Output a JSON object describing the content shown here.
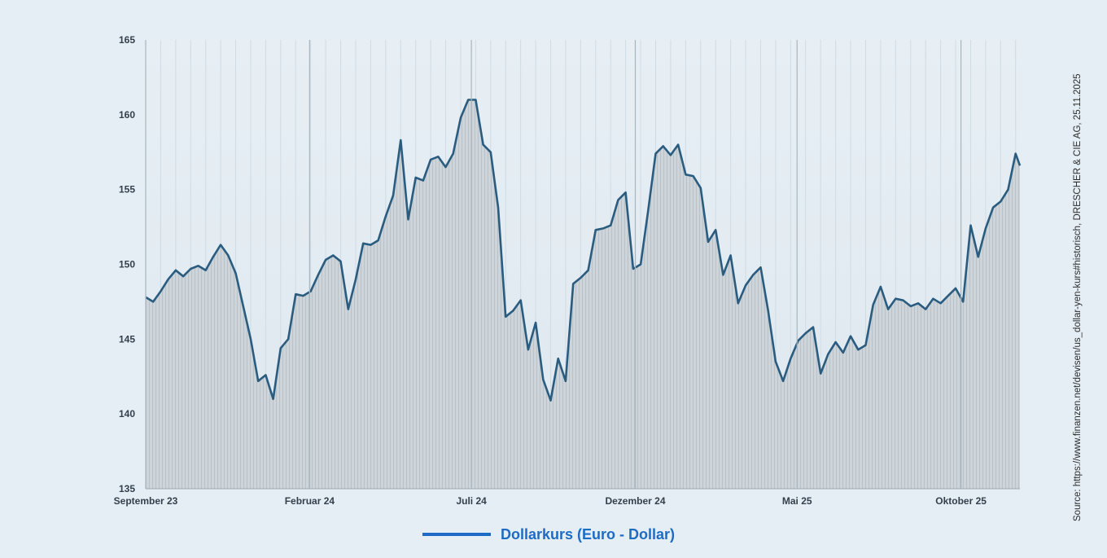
{
  "chart_data": {
    "type": "area",
    "ylim": [
      135,
      165
    ],
    "yticks": [
      "135",
      "140",
      "145",
      "150",
      "155",
      "160",
      "165"
    ],
    "x_range": [
      "2023-09-01",
      "2025-11-25"
    ],
    "xticks": [
      {
        "date": "2023-09-01",
        "label": "September 23"
      },
      {
        "date": "2024-02-01",
        "label": "Februar 24"
      },
      {
        "date": "2024-07-01",
        "label": "Juli 24"
      },
      {
        "date": "2024-12-01",
        "label": "Dezember 24"
      },
      {
        "date": "2025-05-01",
        "label": "Mai 25"
      },
      {
        "date": "2025-10-01",
        "label": "Oktober 25"
      }
    ],
    "grid": "vertical",
    "legend_position": "bottom",
    "series": [
      {
        "name": "Dollarkurs (Euro - Dollar)",
        "points": [
          [
            "2023-09-01",
            147.8
          ],
          [
            "2023-09-08",
            147.5
          ],
          [
            "2023-09-15",
            148.2
          ],
          [
            "2023-09-22",
            149.0
          ],
          [
            "2023-09-29",
            149.6
          ],
          [
            "2023-10-06",
            149.2
          ],
          [
            "2023-10-13",
            149.7
          ],
          [
            "2023-10-20",
            149.9
          ],
          [
            "2023-10-27",
            149.6
          ],
          [
            "2023-11-03",
            150.5
          ],
          [
            "2023-11-10",
            151.3
          ],
          [
            "2023-11-17",
            150.6
          ],
          [
            "2023-11-24",
            149.4
          ],
          [
            "2023-12-01",
            147.2
          ],
          [
            "2023-12-08",
            145.0
          ],
          [
            "2023-12-15",
            142.2
          ],
          [
            "2023-12-22",
            142.6
          ],
          [
            "2023-12-29",
            141.0
          ],
          [
            "2024-01-05",
            144.4
          ],
          [
            "2024-01-12",
            145.0
          ],
          [
            "2024-01-19",
            148.0
          ],
          [
            "2024-01-26",
            147.9
          ],
          [
            "2024-02-02",
            148.2
          ],
          [
            "2024-02-09",
            149.3
          ],
          [
            "2024-02-16",
            150.3
          ],
          [
            "2024-02-23",
            150.6
          ],
          [
            "2024-03-01",
            150.2
          ],
          [
            "2024-03-08",
            147.0
          ],
          [
            "2024-03-15",
            149.0
          ],
          [
            "2024-03-22",
            151.4
          ],
          [
            "2024-03-29",
            151.3
          ],
          [
            "2024-04-05",
            151.6
          ],
          [
            "2024-04-12",
            153.2
          ],
          [
            "2024-04-19",
            154.6
          ],
          [
            "2024-04-26",
            158.3
          ],
          [
            "2024-05-03",
            153.0
          ],
          [
            "2024-05-10",
            155.8
          ],
          [
            "2024-05-17",
            155.6
          ],
          [
            "2024-05-24",
            157.0
          ],
          [
            "2024-05-31",
            157.2
          ],
          [
            "2024-06-07",
            156.5
          ],
          [
            "2024-06-14",
            157.4
          ],
          [
            "2024-06-21",
            159.8
          ],
          [
            "2024-06-28",
            161.0
          ],
          [
            "2024-07-05",
            161.0
          ],
          [
            "2024-07-12",
            158.0
          ],
          [
            "2024-07-19",
            157.5
          ],
          [
            "2024-07-26",
            153.8
          ],
          [
            "2024-08-02",
            146.5
          ],
          [
            "2024-08-09",
            146.9
          ],
          [
            "2024-08-16",
            147.6
          ],
          [
            "2024-08-23",
            144.3
          ],
          [
            "2024-08-30",
            146.1
          ],
          [
            "2024-09-06",
            142.3
          ],
          [
            "2024-09-13",
            140.9
          ],
          [
            "2024-09-20",
            143.7
          ],
          [
            "2024-09-27",
            142.2
          ],
          [
            "2024-10-04",
            148.7
          ],
          [
            "2024-10-11",
            149.1
          ],
          [
            "2024-10-18",
            149.6
          ],
          [
            "2024-10-25",
            152.3
          ],
          [
            "2024-11-01",
            152.4
          ],
          [
            "2024-11-08",
            152.6
          ],
          [
            "2024-11-15",
            154.3
          ],
          [
            "2024-11-22",
            154.8
          ],
          [
            "2024-11-29",
            149.7
          ],
          [
            "2024-12-06",
            150.0
          ],
          [
            "2024-12-13",
            153.6
          ],
          [
            "2024-12-20",
            157.4
          ],
          [
            "2024-12-27",
            157.9
          ],
          [
            "2025-01-03",
            157.3
          ],
          [
            "2025-01-10",
            158.0
          ],
          [
            "2025-01-17",
            156.0
          ],
          [
            "2025-01-24",
            155.9
          ],
          [
            "2025-01-31",
            155.1
          ],
          [
            "2025-02-07",
            151.5
          ],
          [
            "2025-02-14",
            152.3
          ],
          [
            "2025-02-21",
            149.3
          ],
          [
            "2025-02-28",
            150.6
          ],
          [
            "2025-03-07",
            147.4
          ],
          [
            "2025-03-14",
            148.6
          ],
          [
            "2025-03-21",
            149.3
          ],
          [
            "2025-03-28",
            149.8
          ],
          [
            "2025-04-04",
            146.9
          ],
          [
            "2025-04-11",
            143.5
          ],
          [
            "2025-04-18",
            142.2
          ],
          [
            "2025-04-25",
            143.7
          ],
          [
            "2025-05-02",
            144.9
          ],
          [
            "2025-05-09",
            145.4
          ],
          [
            "2025-05-16",
            145.8
          ],
          [
            "2025-05-23",
            142.7
          ],
          [
            "2025-05-30",
            144.0
          ],
          [
            "2025-06-06",
            144.8
          ],
          [
            "2025-06-13",
            144.1
          ],
          [
            "2025-06-20",
            145.2
          ],
          [
            "2025-06-27",
            144.3
          ],
          [
            "2025-07-04",
            144.6
          ],
          [
            "2025-07-11",
            147.3
          ],
          [
            "2025-07-18",
            148.5
          ],
          [
            "2025-07-25",
            147.0
          ],
          [
            "2025-08-01",
            147.7
          ],
          [
            "2025-08-08",
            147.6
          ],
          [
            "2025-08-15",
            147.2
          ],
          [
            "2025-08-22",
            147.4
          ],
          [
            "2025-08-29",
            147.0
          ],
          [
            "2025-09-05",
            147.7
          ],
          [
            "2025-09-12",
            147.4
          ],
          [
            "2025-09-19",
            147.9
          ],
          [
            "2025-09-26",
            148.4
          ],
          [
            "2025-10-03",
            147.5
          ],
          [
            "2025-10-10",
            152.6
          ],
          [
            "2025-10-17",
            150.5
          ],
          [
            "2025-10-24",
            152.4
          ],
          [
            "2025-10-31",
            153.8
          ],
          [
            "2025-11-07",
            154.2
          ],
          [
            "2025-11-14",
            155.0
          ],
          [
            "2025-11-21",
            157.4
          ],
          [
            "2025-11-25",
            156.6
          ]
        ]
      }
    ]
  },
  "legend": {
    "label": "Dollarkurs (Euro - Dollar)",
    "color": "#1d6bc4"
  },
  "line_color": "#2a5c80",
  "source": "Source: https://www.finanzen.net/devisen/us_dollar-yen-kurs#historisch, DRESCHER & CIE AG, 25.11.2025"
}
